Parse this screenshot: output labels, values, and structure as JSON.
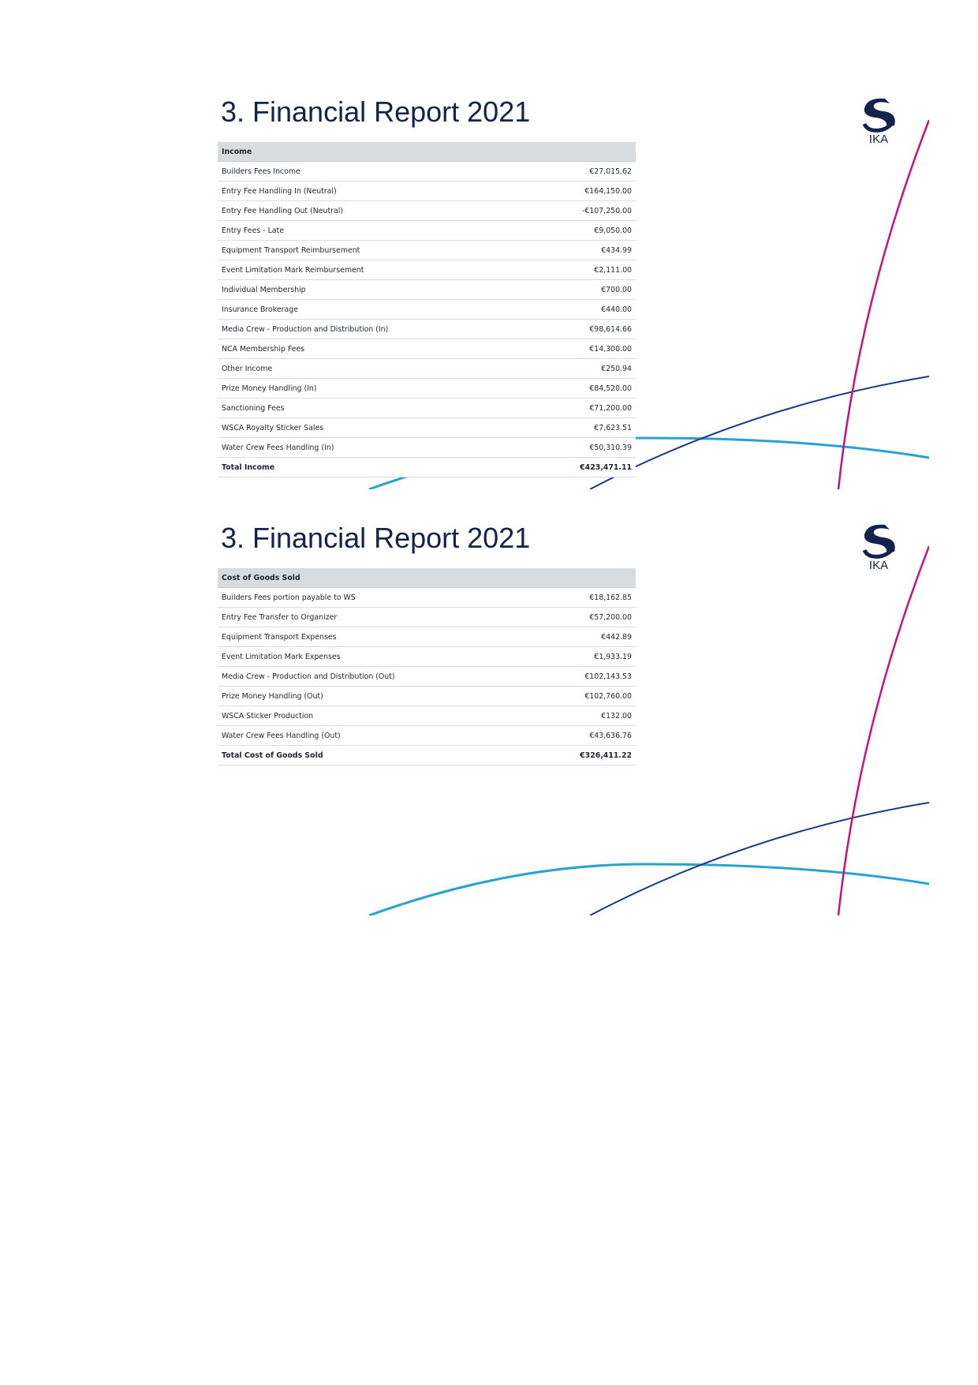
{
  "pages": [
    {
      "title": "3. Financial Report 2021",
      "logo_text": "IKA",
      "table": {
        "header": "Income",
        "rows": [
          {
            "label": "Builders Fees Income",
            "amount": "€27,015.62"
          },
          {
            "label": "Entry Fee Handling In (Neutral)",
            "amount": "€164,150.00"
          },
          {
            "label": "Entry Fee Handling Out (Neutral)",
            "amount": "-€107,250.00"
          },
          {
            "label": "Entry Fees - Late",
            "amount": "€9,050.00"
          },
          {
            "label": "Equipment Transport Reimbursement",
            "amount": "€434.99"
          },
          {
            "label": "Event Limitation Mark Reimbursement",
            "amount": "€2,111.00"
          },
          {
            "label": "Individual Membership",
            "amount": "€700.00"
          },
          {
            "label": "Insurance Brokerage",
            "amount": "€440.00"
          },
          {
            "label": "Media Crew - Production and Distribution (In)",
            "amount": "€98,614.66"
          },
          {
            "label": "NCA Membership Fees",
            "amount": "€14,300.00"
          },
          {
            "label": "Other Income",
            "amount": "€250.94"
          },
          {
            "label": "Prize Money Handling (In)",
            "amount": "€84,520.00"
          },
          {
            "label": "Sanctioning Fees",
            "amount": "€71,200.00"
          },
          {
            "label": "WSCA Royalty Sticker Sales",
            "amount": "€7,623.51"
          },
          {
            "label": "Water Crew Fees Handling (In)",
            "amount": "€50,310.39"
          }
        ],
        "total": {
          "label": "Total Income",
          "amount": "€423,471.11"
        }
      }
    },
    {
      "title": "3. Financial Report 2021",
      "logo_text": "IKA",
      "table": {
        "header": "Cost of Goods Sold",
        "rows": [
          {
            "label": "Builders Fees portion payable to WS",
            "amount": "€18,162.85"
          },
          {
            "label": "Entry Fee Transfer to Organizer",
            "amount": "€57,200.00"
          },
          {
            "label": "Equipment Transport Expenses",
            "amount": "€442.89"
          },
          {
            "label": "Event Limitation Mark Expenses",
            "amount": "€1,933.19"
          },
          {
            "label": "Media Crew - Production and Distribution (Out)",
            "amount": "€102,143.53"
          },
          {
            "label": "Prize Money Handling (Out)",
            "amount": "€102,760.00"
          },
          {
            "label": "WSCA Sticker Production",
            "amount": "€132.00"
          },
          {
            "label": "Water Crew Fees Handling (Out)",
            "amount": "€43,636.76"
          }
        ],
        "total": {
          "label": "Total Cost of Goods Sold",
          "amount": "€326,411.22"
        }
      }
    }
  ],
  "colors": {
    "title": "#13234a",
    "header_bg": "#d9dcdf",
    "arc_magenta": "#c8127a",
    "arc_navy": "#1b3a86",
    "arc_cyan": "#27a3d1",
    "logo": "#13234a"
  }
}
